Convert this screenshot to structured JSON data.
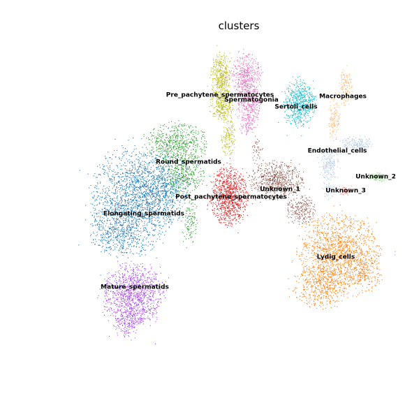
{
  "chart_data": {
    "type": "scatter",
    "title": "clusters",
    "xlabel": "",
    "ylabel": "",
    "grid": false,
    "axes_visible": false,
    "legend": "on-data",
    "point_style": "dense UMAP-style embedding; each cluster drawn as a cloud of small points",
    "clusters": [
      {
        "name": "Pre_pachytene_spermatocytes",
        "color": "#bcbd22"
      },
      {
        "name": "Spermatogonia",
        "color": "#e377c2"
      },
      {
        "name": "Sertoli_cells",
        "color": "#17becf"
      },
      {
        "name": "Macrophages",
        "color": "#ffbb78"
      },
      {
        "name": "Endothelial_cells",
        "color": "#aec7e8"
      },
      {
        "name": "Unknown_2",
        "color": "#98df8a"
      },
      {
        "name": "Unknown_3",
        "color": "#ff9896"
      },
      {
        "name": "Round_spermatids",
        "color": "#2ca02c"
      },
      {
        "name": "Post_pachytene_spermatocytes",
        "color": "#d62728"
      },
      {
        "name": "Unknown_1",
        "color": "#8c564b"
      },
      {
        "name": "Elongating_spermatids",
        "color": "#1f77b4"
      },
      {
        "name": "Lydig_cells",
        "color": "#ff7f0e"
      },
      {
        "name": "Mature_spermatids",
        "color": "#a846f0"
      }
    ]
  }
}
